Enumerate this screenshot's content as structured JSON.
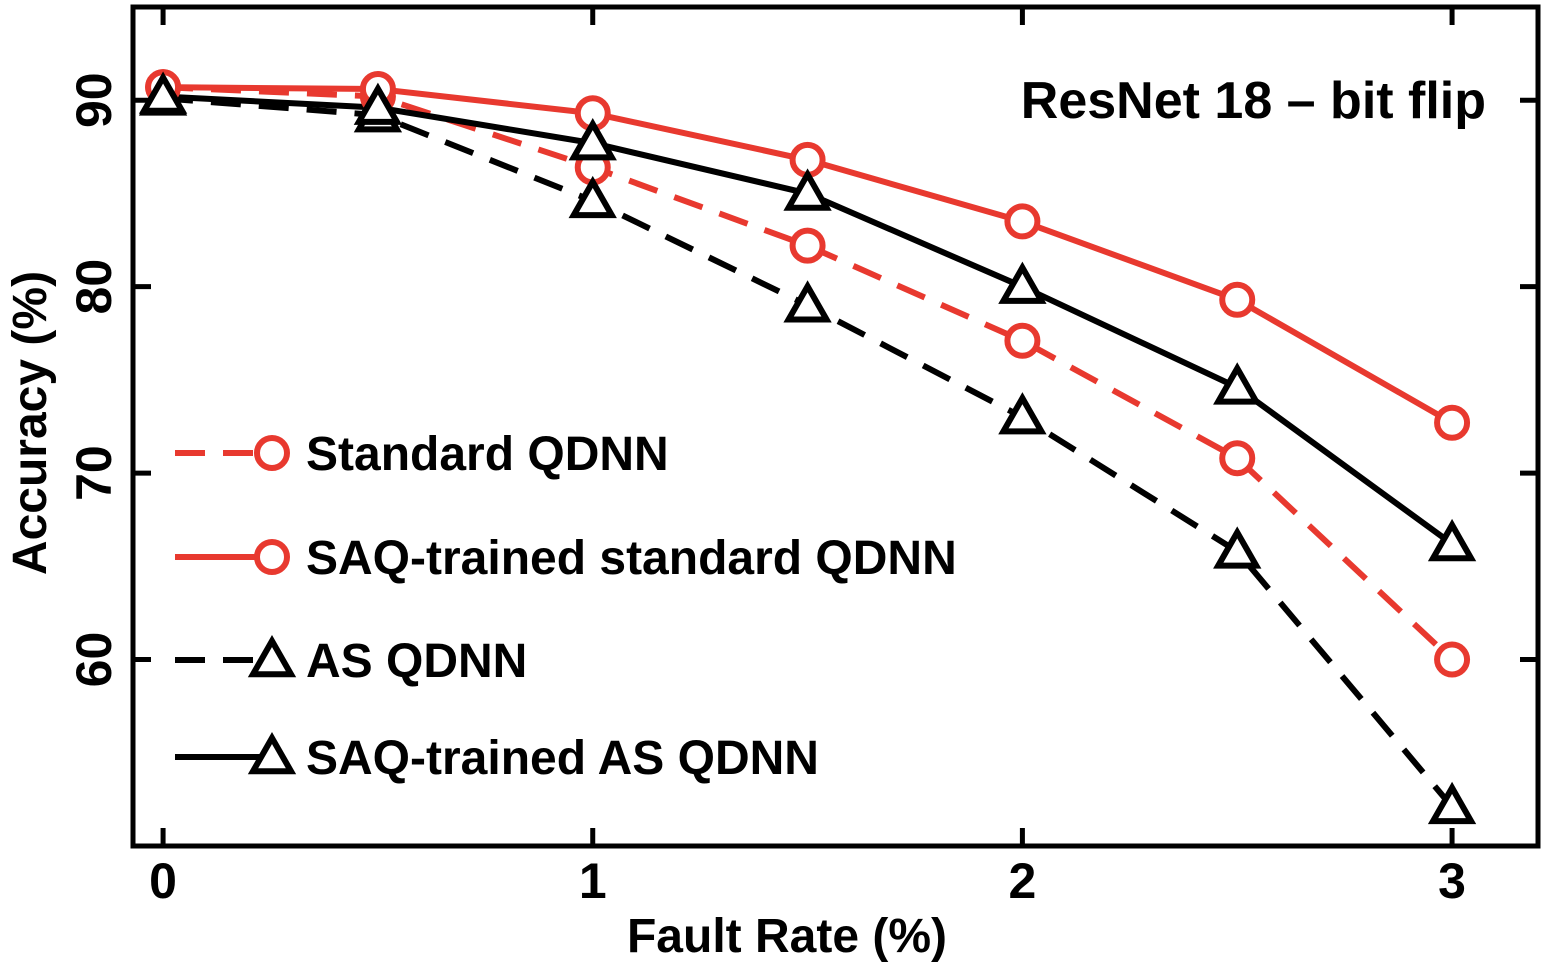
{
  "chart_data": {
    "type": "line",
    "title": "",
    "annotation": "ResNet 18 – bit flip",
    "xlabel": "Fault Rate (%)",
    "ylabel": "Accuracy (%)",
    "xlim": [
      -0.07,
      3.2
    ],
    "ylim": [
      50,
      95
    ],
    "x_ticks": [
      0,
      1,
      2,
      3
    ],
    "y_ticks": [
      60,
      70,
      80,
      90
    ],
    "x_tick_labels": [
      "0",
      "1",
      "2",
      "3"
    ],
    "y_tick_labels": [
      "60",
      "70",
      "80",
      "90"
    ],
    "grid": false,
    "legend_position": "center-left",
    "x": [
      0,
      0.5,
      1,
      1.5,
      2,
      2.5,
      3
    ],
    "series": [
      {
        "name": "Standard QDNN",
        "color": "#e8392f",
        "dash": "dashed",
        "marker": "circle",
        "values": [
          90.7,
          90.2,
          86.4,
          82.2,
          77.1,
          70.8,
          60.0
        ]
      },
      {
        "name": "SAQ-trained standard QDNN",
        "color": "#e8392f",
        "dash": "solid",
        "marker": "circle",
        "values": [
          90.7,
          90.6,
          89.3,
          86.8,
          83.5,
          79.3,
          72.7
        ]
      },
      {
        "name": "AS QDNN",
        "color": "#000000",
        "dash": "dashed",
        "marker": "triangle",
        "values": [
          90.1,
          89.2,
          84.6,
          79.0,
          73.0,
          65.8,
          52.1
        ]
      },
      {
        "name": "SAQ-trained AS QDNN",
        "color": "#000000",
        "dash": "solid",
        "marker": "triangle",
        "values": [
          90.2,
          89.6,
          87.7,
          85.0,
          80.0,
          74.6,
          66.2
        ]
      }
    ]
  }
}
